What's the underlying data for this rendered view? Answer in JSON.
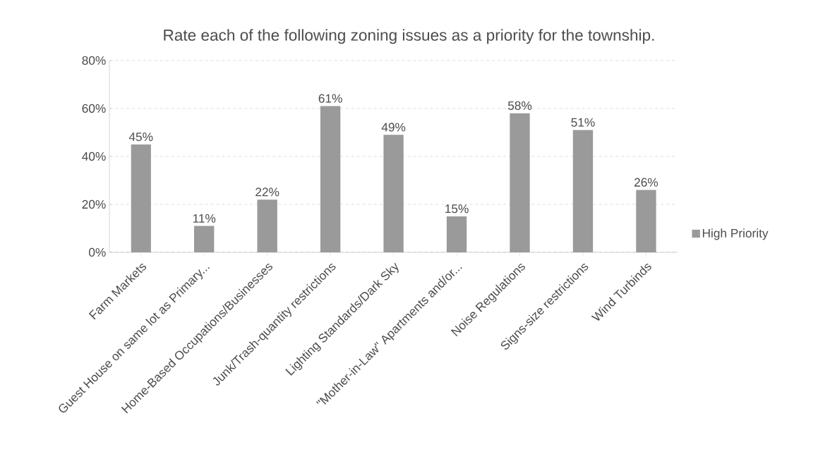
{
  "chart_data": {
    "type": "bar",
    "title": "Rate each of the following zoning issues as a priority for the township.",
    "categories": [
      "Farm Markets",
      "Guest House on same lot as Primary...",
      "Home-Based Occupations/Businesses",
      "Junk/Trash-quantity restrictions",
      "Lighting Standards/Dark Sky",
      "\"Mother-in-Law\" Apartments and/or...",
      "Noise Regulations",
      "Signs-size restrictions",
      "Wind Turbinds"
    ],
    "series": [
      {
        "name": "High Priority",
        "color": "#9a9a9a",
        "values": [
          45,
          11,
          22,
          61,
          49,
          15,
          58,
          51,
          26
        ],
        "value_labels": [
          "45%",
          "11%",
          "22%",
          "61%",
          "49%",
          "15%",
          "58%",
          "51%",
          "26%"
        ]
      }
    ],
    "ylim": [
      0,
      80
    ],
    "yticks": [
      {
        "value": 0,
        "label": "0%"
      },
      {
        "value": 20,
        "label": "20%"
      },
      {
        "value": 40,
        "label": "40%"
      },
      {
        "value": 60,
        "label": "60%"
      },
      {
        "value": 80,
        "label": "80%"
      }
    ],
    "grid": "y",
    "legend": "right"
  }
}
